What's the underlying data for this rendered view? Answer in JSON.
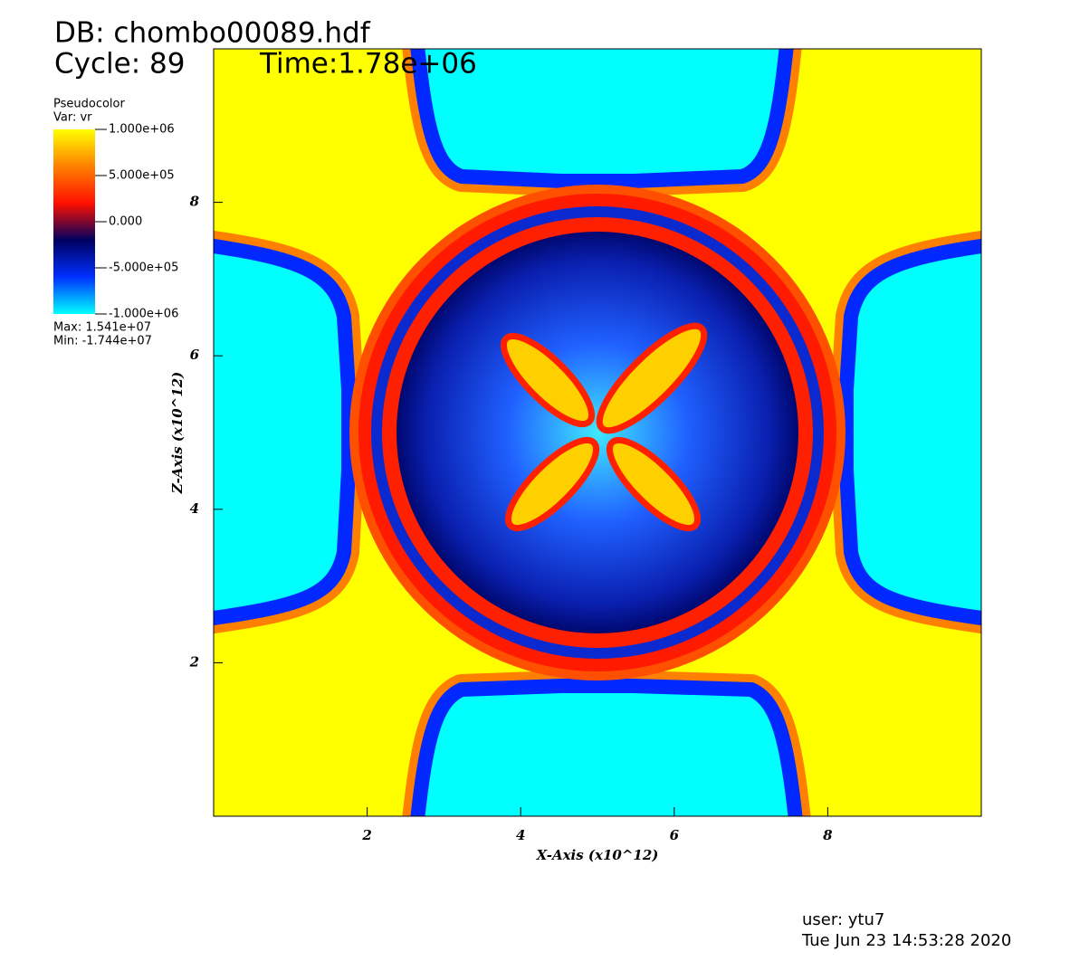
{
  "chart_data": {
    "type": "pseudocolor",
    "title": "DB: chombo00089.hdf",
    "cycle": "Cycle: 89",
    "time": "Time:1.78e+06",
    "x_label": "X-Axis (x10^12)",
    "y_label": "Z-Axis (x10^12)",
    "xlim": [
      0,
      10
    ],
    "ylim": [
      0,
      10
    ],
    "xticks": [
      2,
      4,
      6,
      8
    ],
    "yticks": [
      2,
      4,
      6,
      8
    ],
    "legend": {
      "title": "Pseudocolor",
      "var": "Var: vr",
      "max_text": "Max:  1.541e+07",
      "min_text": "Min: -1.744e+07",
      "clim": [
        -1000000,
        1000000
      ],
      "colors": [
        "#00ffff",
        "#0030ff",
        "#000060",
        "#ff1000",
        "#ff8000",
        "#ffff00"
      ],
      "ticks": [
        {
          "value": 1000000,
          "label": "1.000e+06"
        },
        {
          "value": 500000,
          "label": "5.000e+05"
        },
        {
          "value": 0,
          "label": "0.000"
        },
        {
          "value": -500000,
          "label": "-5.000e+05"
        },
        {
          "value": -1000000,
          "label": "-1.000e+06"
        }
      ]
    },
    "user": "user: ytu7",
    "date": "Tue Jun 23 14:53:28 2020"
  }
}
